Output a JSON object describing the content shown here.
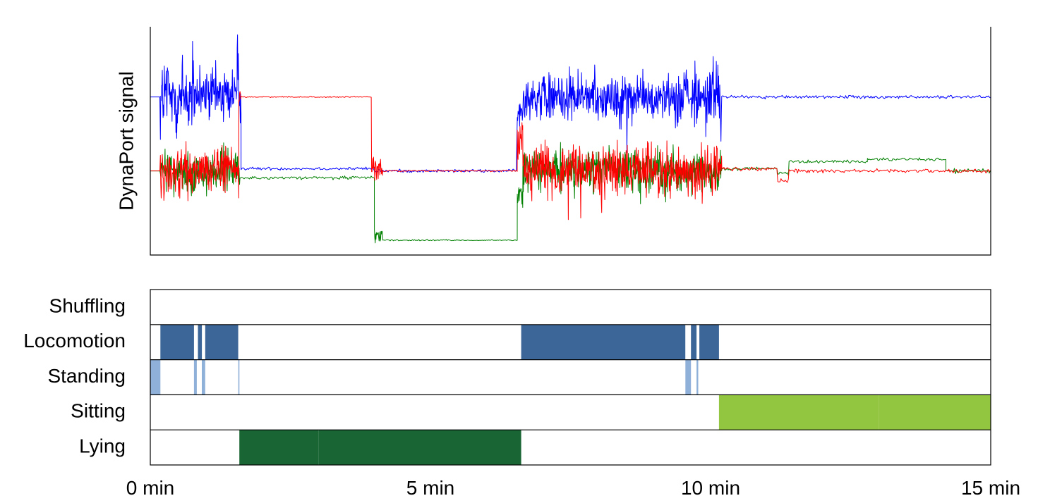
{
  "chart_data": [
    {
      "type": "line",
      "title": "",
      "xlabel": "",
      "ylabel": "DynaPort signal",
      "xlim": [
        0,
        15
      ],
      "x_unit": "min",
      "grid": false,
      "legend": "none",
      "series": [
        {
          "color": "#0000ff",
          "segments": [
            {
              "start": 0.0,
              "end": 0.18,
              "level": 0.62,
              "noise": 0.0
            },
            {
              "start": 0.18,
              "end": 0.8,
              "level": 0.62,
              "noise": 0.3
            },
            {
              "start": 0.8,
              "end": 1.0,
              "level": 0.62,
              "noise": 0.14
            },
            {
              "start": 1.0,
              "end": 1.55,
              "level": 0.63,
              "noise": 0.18
            },
            {
              "start": 1.55,
              "end": 1.62,
              "level": 0.7,
              "noise": 0.38
            },
            {
              "start": 1.62,
              "end": 4.0,
              "level": 0.31,
              "noise": 0.01
            },
            {
              "start": 4.0,
              "end": 6.55,
              "level": 0.3,
              "noise": 0.01
            },
            {
              "start": 6.55,
              "end": 6.65,
              "level": 0.55,
              "noise": 0.1
            },
            {
              "start": 6.65,
              "end": 9.7,
              "level": 0.62,
              "noise": 0.16
            },
            {
              "start": 9.7,
              "end": 10.2,
              "level": 0.62,
              "noise": 0.2
            },
            {
              "start": 10.2,
              "end": 15.0,
              "level": 0.62,
              "noise": 0.01
            }
          ]
        },
        {
          "color": "#008000",
          "segments": [
            {
              "start": 0.0,
              "end": 0.18,
              "level": 0.3,
              "noise": 0.0
            },
            {
              "start": 0.18,
              "end": 1.6,
              "level": 0.3,
              "noise": 0.14
            },
            {
              "start": 1.6,
              "end": 4.0,
              "level": 0.27,
              "noise": 0.01
            },
            {
              "start": 4.0,
              "end": 4.15,
              "level": 0.02,
              "noise": 0.05
            },
            {
              "start": 4.15,
              "end": 6.55,
              "level": 0.0,
              "noise": 0.004
            },
            {
              "start": 6.55,
              "end": 6.65,
              "level": 0.2,
              "noise": 0.08
            },
            {
              "start": 6.65,
              "end": 10.2,
              "level": 0.3,
              "noise": 0.13
            },
            {
              "start": 10.2,
              "end": 11.2,
              "level": 0.31,
              "noise": 0.01
            },
            {
              "start": 11.2,
              "end": 11.4,
              "level": 0.29,
              "noise": 0.02
            },
            {
              "start": 11.4,
              "end": 12.8,
              "level": 0.34,
              "noise": 0.01
            },
            {
              "start": 12.8,
              "end": 14.2,
              "level": 0.35,
              "noise": 0.01
            },
            {
              "start": 14.2,
              "end": 15.0,
              "level": 0.3,
              "noise": 0.015
            }
          ]
        },
        {
          "color": "#ff0000",
          "segments": [
            {
              "start": 0.0,
              "end": 0.18,
              "level": 0.3,
              "noise": 0.0
            },
            {
              "start": 0.18,
              "end": 1.58,
              "level": 0.3,
              "noise": 0.15
            },
            {
              "start": 1.58,
              "end": 1.62,
              "level": 0.62,
              "noise": 0.04
            },
            {
              "start": 1.62,
              "end": 3.95,
              "level": 0.62,
              "noise": 0.004
            },
            {
              "start": 3.95,
              "end": 4.15,
              "level": 0.32,
              "noise": 0.08
            },
            {
              "start": 4.15,
              "end": 6.55,
              "level": 0.3,
              "noise": 0.005
            },
            {
              "start": 6.55,
              "end": 6.65,
              "level": 0.45,
              "noise": 0.12
            },
            {
              "start": 6.65,
              "end": 10.2,
              "level": 0.3,
              "noise": 0.16
            },
            {
              "start": 10.2,
              "end": 11.2,
              "level": 0.31,
              "noise": 0.012
            },
            {
              "start": 11.2,
              "end": 11.4,
              "level": 0.26,
              "noise": 0.02
            },
            {
              "start": 11.4,
              "end": 15.0,
              "level": 0.3,
              "noise": 0.012
            }
          ]
        }
      ]
    },
    {
      "type": "timeline",
      "title": "",
      "xlabel": "",
      "xlim": [
        0,
        15
      ],
      "x_unit": "min",
      "ticks": [
        {
          "value": 0,
          "label": "0 min"
        },
        {
          "value": 5,
          "label": "5 min"
        },
        {
          "value": 10,
          "label": "10 min"
        },
        {
          "value": 15,
          "label": "15 min"
        }
      ],
      "categories": [
        "Shuffling",
        "Locomotion",
        "Standing",
        "Sitting",
        "Lying"
      ],
      "colors": {
        "Shuffling": "#3b6697",
        "Locomotion": "#3b6697",
        "Standing": "#8fb0d8",
        "Sitting": "#93c640",
        "Lying": "#1a6534"
      },
      "intervals": [
        {
          "category": "Locomotion",
          "start": 0.18,
          "end": 0.78
        },
        {
          "category": "Locomotion",
          "start": 0.85,
          "end": 0.92
        },
        {
          "category": "Locomotion",
          "start": 0.98,
          "end": 1.57
        },
        {
          "category": "Locomotion",
          "start": 6.62,
          "end": 9.55
        },
        {
          "category": "Locomotion",
          "start": 9.65,
          "end": 9.75
        },
        {
          "category": "Locomotion",
          "start": 9.8,
          "end": 10.15
        },
        {
          "category": "Standing",
          "start": 0.0,
          "end": 0.18
        },
        {
          "category": "Standing",
          "start": 0.78,
          "end": 0.83
        },
        {
          "category": "Standing",
          "start": 0.92,
          "end": 0.98
        },
        {
          "category": "Standing",
          "start": 1.57,
          "end": 1.59
        },
        {
          "category": "Standing",
          "start": 9.55,
          "end": 9.65
        },
        {
          "category": "Standing",
          "start": 9.75,
          "end": 9.78
        },
        {
          "category": "Sitting",
          "start": 10.15,
          "end": 13.0
        },
        {
          "category": "Sitting",
          "start": 13.0,
          "end": 15.0
        },
        {
          "category": "Lying",
          "start": 1.59,
          "end": 3.0
        },
        {
          "category": "Lying",
          "start": 3.0,
          "end": 6.62
        }
      ]
    }
  ]
}
